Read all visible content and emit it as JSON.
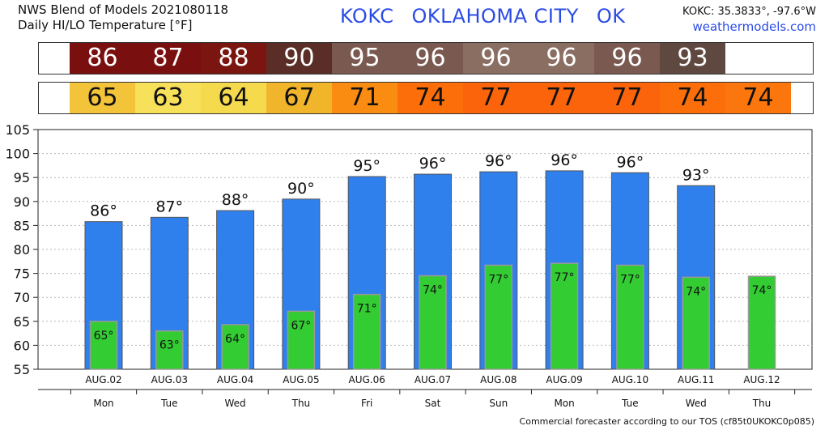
{
  "header": {
    "line1": "NWS Blend of Models 2021080118",
    "line2": "Daily HI/LO Temperature [°F]",
    "station_code": "KOKC",
    "station_name": "OKLAHOMA CITY",
    "state": "OK",
    "coords": "KOKC: 35.3833°, -97.6°W",
    "site": "weathermodels.com"
  },
  "footer": "Commercial forecaster according to our TOS (cf85t0UKOKC0p085)",
  "colors": {
    "hi_bar": "#2f80ec",
    "lo_bar": "#33cc33",
    "hi_cells": [
      "#7a0f0f",
      "#7a0f0f",
      "#7a1510",
      "#5a2e26",
      "#7a5a50",
      "#7a5a50",
      "#8a6e62",
      "#8a6e62",
      "#7a5a50",
      "#5e4840",
      "#ffffff"
    ],
    "lo_cells": [
      "#f3c33a",
      "#f7e05a",
      "#f6da4e",
      "#f1b52c",
      "#fa8c12",
      "#fb6e0a",
      "#fb640a",
      "#fb640a",
      "#fb640a",
      "#fb6e0a",
      "#fb760c"
    ]
  },
  "hi_strip": [
    "86",
    "87",
    "88",
    "90",
    "95",
    "96",
    "96",
    "96",
    "96",
    "93",
    ""
  ],
  "lo_strip": [
    "65",
    "63",
    "64",
    "67",
    "71",
    "74",
    "77",
    "77",
    "77",
    "74",
    "74"
  ],
  "chart_data": {
    "type": "bar",
    "categories": [
      "AUG.02",
      "AUG.03",
      "AUG.04",
      "AUG.05",
      "AUG.06",
      "AUG.07",
      "AUG.08",
      "AUG.09",
      "AUG.10",
      "AUG.11",
      "AUG.12"
    ],
    "days": [
      "Mon",
      "Tue",
      "Wed",
      "Thu",
      "Fri",
      "Sat",
      "Sun",
      "Mon",
      "Tue",
      "Wed",
      "Thu"
    ],
    "series": [
      {
        "values": [
          85.8,
          86.7,
          88.1,
          90.5,
          95.2,
          95.7,
          96.2,
          96.4,
          96.0,
          93.3,
          null
        ],
        "labels": [
          "86°",
          "87°",
          "88°",
          "90°",
          "95°",
          "96°",
          "96°",
          "96°",
          "96°",
          "93°",
          ""
        ]
      },
      {
        "values": [
          65.0,
          63.0,
          64.3,
          67.1,
          70.6,
          74.5,
          76.7,
          77.1,
          76.7,
          74.2,
          74.4
        ],
        "labels": [
          "65°",
          "63°",
          "64°",
          "67°",
          "71°",
          "74°",
          "77°",
          "77°",
          "77°",
          "74°",
          "74°"
        ]
      }
    ],
    "ylim": [
      55,
      105
    ],
    "yticks": [
      55,
      60,
      65,
      70,
      75,
      80,
      85,
      90,
      95,
      100,
      105
    ],
    "grid": true
  }
}
